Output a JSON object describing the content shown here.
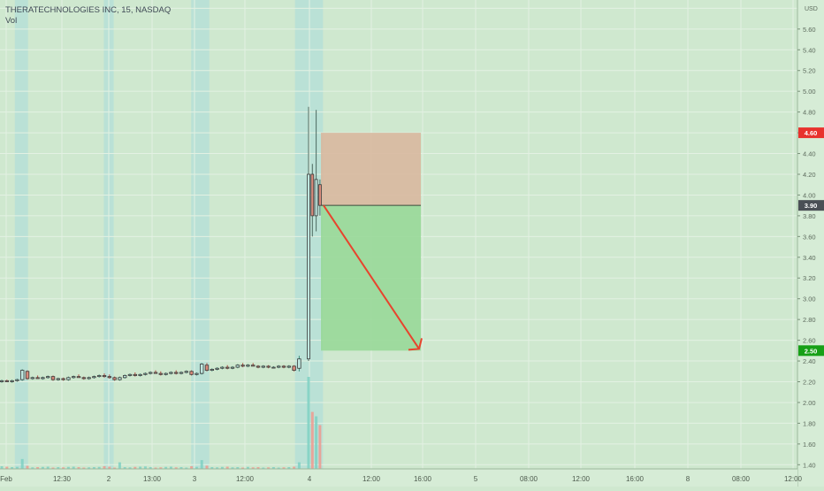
{
  "legend": {
    "symbol_line": "THERATECHNOLOGIES INC, 15, NASDAQ",
    "volume_label": "Vol"
  },
  "chart_data": {
    "type": "candlestick",
    "title": "THERATECHNOLOGIES INC, 15, NASDAQ",
    "currency": "USD",
    "ylim": [
      1.36,
      5.88
    ],
    "y_ticks": [
      "5.80",
      "5.60",
      "5.40",
      "5.20",
      "5.00",
      "4.80",
      "4.60",
      "4.40",
      "4.20",
      "4.00",
      "3.80",
      "3.60",
      "3.40",
      "3.20",
      "3.00",
      "2.80",
      "2.60",
      "2.40",
      "2.20",
      "2.00",
      "1.80",
      "1.60",
      "1.40"
    ],
    "x_tick_labels": [
      "Feb",
      "12:30",
      "2",
      "13:00",
      "3",
      "12:00",
      "4",
      "12:00",
      "16:00",
      "5",
      "08:00",
      "12:00",
      "16:00",
      "8",
      "08:00",
      "12:00"
    ],
    "price_labels": [
      {
        "value": "4.60",
        "color": "#e8322d"
      },
      {
        "value": "3.90",
        "color": "#4a4f55"
      },
      {
        "value": "2.50",
        "color": "#17a017"
      }
    ],
    "candles": [
      {
        "o": 2.2,
        "h": 2.22,
        "l": 2.19,
        "c": 2.21
      },
      {
        "o": 2.21,
        "h": 2.22,
        "l": 2.2,
        "c": 2.2
      },
      {
        "o": 2.2,
        "h": 2.22,
        "l": 2.19,
        "c": 2.21
      },
      {
        "o": 2.21,
        "h": 2.23,
        "l": 2.2,
        "c": 2.22
      },
      {
        "o": 2.22,
        "h": 2.32,
        "l": 2.21,
        "c": 2.31
      },
      {
        "o": 2.3,
        "h": 2.31,
        "l": 2.22,
        "c": 2.23
      },
      {
        "o": 2.23,
        "h": 2.25,
        "l": 2.22,
        "c": 2.24
      },
      {
        "o": 2.24,
        "h": 2.26,
        "l": 2.23,
        "c": 2.23
      },
      {
        "o": 2.23,
        "h": 2.25,
        "l": 2.22,
        "c": 2.24
      },
      {
        "o": 2.24,
        "h": 2.26,
        "l": 2.23,
        "c": 2.25
      },
      {
        "o": 2.25,
        "h": 2.26,
        "l": 2.21,
        "c": 2.22
      },
      {
        "o": 2.22,
        "h": 2.24,
        "l": 2.21,
        "c": 2.23
      },
      {
        "o": 2.23,
        "h": 2.24,
        "l": 2.21,
        "c": 2.22
      },
      {
        "o": 2.22,
        "h": 2.25,
        "l": 2.21,
        "c": 2.24
      },
      {
        "o": 2.24,
        "h": 2.26,
        "l": 2.23,
        "c": 2.25
      },
      {
        "o": 2.25,
        "h": 2.27,
        "l": 2.24,
        "c": 2.24
      },
      {
        "o": 2.24,
        "h": 2.25,
        "l": 2.22,
        "c": 2.23
      },
      {
        "o": 2.23,
        "h": 2.25,
        "l": 2.22,
        "c": 2.24
      },
      {
        "o": 2.24,
        "h": 2.26,
        "l": 2.23,
        "c": 2.25
      },
      {
        "o": 2.25,
        "h": 2.27,
        "l": 2.24,
        "c": 2.26
      },
      {
        "o": 2.26,
        "h": 2.28,
        "l": 2.24,
        "c": 2.25
      },
      {
        "o": 2.25,
        "h": 2.27,
        "l": 2.23,
        "c": 2.24
      },
      {
        "o": 2.24,
        "h": 2.25,
        "l": 2.21,
        "c": 2.22
      },
      {
        "o": 2.22,
        "h": 2.25,
        "l": 2.21,
        "c": 2.24
      },
      {
        "o": 2.24,
        "h": 2.27,
        "l": 2.23,
        "c": 2.26
      },
      {
        "o": 2.26,
        "h": 2.28,
        "l": 2.25,
        "c": 2.27
      },
      {
        "o": 2.27,
        "h": 2.29,
        "l": 2.25,
        "c": 2.26
      },
      {
        "o": 2.26,
        "h": 2.28,
        "l": 2.25,
        "c": 2.27
      },
      {
        "o": 2.27,
        "h": 2.29,
        "l": 2.26,
        "c": 2.28
      },
      {
        "o": 2.28,
        "h": 2.3,
        "l": 2.27,
        "c": 2.29
      },
      {
        "o": 2.29,
        "h": 2.31,
        "l": 2.28,
        "c": 2.28
      },
      {
        "o": 2.28,
        "h": 2.3,
        "l": 2.26,
        "c": 2.27
      },
      {
        "o": 2.27,
        "h": 2.29,
        "l": 2.26,
        "c": 2.28
      },
      {
        "o": 2.28,
        "h": 2.3,
        "l": 2.27,
        "c": 2.29
      },
      {
        "o": 2.29,
        "h": 2.31,
        "l": 2.27,
        "c": 2.28
      },
      {
        "o": 2.28,
        "h": 2.3,
        "l": 2.27,
        "c": 2.29
      },
      {
        "o": 2.29,
        "h": 2.31,
        "l": 2.28,
        "c": 2.3
      },
      {
        "o": 2.3,
        "h": 2.31,
        "l": 2.26,
        "c": 2.27
      },
      {
        "o": 2.27,
        "h": 2.29,
        "l": 2.26,
        "c": 2.28
      },
      {
        "o": 2.28,
        "h": 2.38,
        "l": 2.27,
        "c": 2.37
      },
      {
        "o": 2.36,
        "h": 2.38,
        "l": 2.3,
        "c": 2.31
      },
      {
        "o": 2.31,
        "h": 2.33,
        "l": 2.3,
        "c": 2.32
      },
      {
        "o": 2.32,
        "h": 2.34,
        "l": 2.31,
        "c": 2.33
      },
      {
        "o": 2.33,
        "h": 2.35,
        "l": 2.32,
        "c": 2.34
      },
      {
        "o": 2.34,
        "h": 2.36,
        "l": 2.32,
        "c": 2.33
      },
      {
        "o": 2.33,
        "h": 2.35,
        "l": 2.32,
        "c": 2.34
      },
      {
        "o": 2.34,
        "h": 2.37,
        "l": 2.33,
        "c": 2.36
      },
      {
        "o": 2.36,
        "h": 2.38,
        "l": 2.34,
        "c": 2.35
      },
      {
        "o": 2.35,
        "h": 2.37,
        "l": 2.34,
        "c": 2.36
      },
      {
        "o": 2.36,
        "h": 2.38,
        "l": 2.35,
        "c": 2.35
      },
      {
        "o": 2.35,
        "h": 2.36,
        "l": 2.33,
        "c": 2.34
      },
      {
        "o": 2.34,
        "h": 2.36,
        "l": 2.33,
        "c": 2.35
      },
      {
        "o": 2.35,
        "h": 2.36,
        "l": 2.33,
        "c": 2.34
      },
      {
        "o": 2.34,
        "h": 2.35,
        "l": 2.33,
        "c": 2.34
      },
      {
        "o": 2.34,
        "h": 2.36,
        "l": 2.33,
        "c": 2.35
      },
      {
        "o": 2.35,
        "h": 2.36,
        "l": 2.33,
        "c": 2.34
      },
      {
        "o": 2.34,
        "h": 2.36,
        "l": 2.33,
        "c": 2.35
      },
      {
        "o": 2.35,
        "h": 2.36,
        "l": 2.3,
        "c": 2.31
      },
      {
        "o": 2.33,
        "h": 2.45,
        "l": 2.3,
        "c": 2.42
      },
      {
        "o": 2.42,
        "h": 4.85,
        "l": 2.4,
        "c": 4.2
      },
      {
        "o": 4.2,
        "h": 4.3,
        "l": 3.6,
        "c": 3.8
      },
      {
        "o": 3.8,
        "h": 4.82,
        "l": 3.65,
        "c": 4.15
      },
      {
        "o": 4.1,
        "h": 4.15,
        "l": 3.8,
        "c": 3.9
      }
    ],
    "volumes": [
      0.12,
      0.1,
      0.08,
      0.09,
      0.45,
      0.14,
      0.07,
      0.08,
      0.09,
      0.1,
      0.06,
      0.08,
      0.07,
      0.09,
      0.1,
      0.08,
      0.06,
      0.07,
      0.08,
      0.09,
      0.12,
      0.1,
      0.06,
      0.3,
      0.08,
      0.07,
      0.09,
      0.1,
      0.11,
      0.08,
      0.06,
      0.07,
      0.09,
      0.1,
      0.07,
      0.08,
      0.06,
      0.12,
      0.09,
      0.4,
      0.15,
      0.08,
      0.07,
      0.09,
      0.1,
      0.07,
      0.08,
      0.06,
      0.09,
      0.07,
      0.08,
      0.06,
      0.07,
      0.08,
      0.06,
      0.07,
      0.08,
      0.1,
      0.3,
      4.2,
      2.6,
      2.4,
      2.0
    ],
    "session_bands": [
      [
        0.018,
        0.034
      ],
      [
        0.126,
        0.138
      ],
      [
        0.232,
        0.254
      ],
      [
        0.358,
        0.392
      ]
    ],
    "position_tool": {
      "entry": 3.9,
      "stop": 4.6,
      "target": 2.5,
      "profit_color": "#98d898",
      "loss_color": "#d8b89e",
      "arrow_color": "#e8432d"
    },
    "grid": true
  }
}
